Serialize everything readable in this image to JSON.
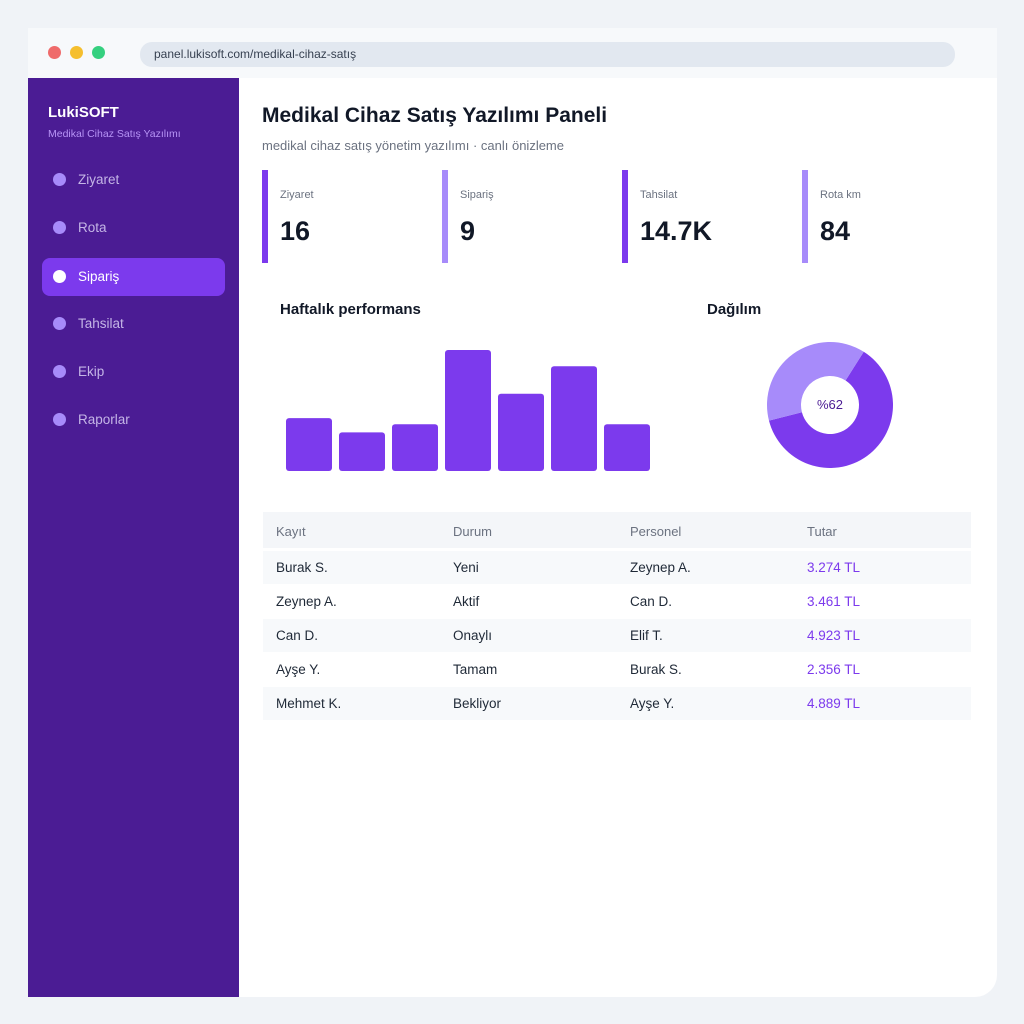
{
  "browser": {
    "url": "panel.lukisoft.com/medikal-cihaz-satış"
  },
  "sidebar": {
    "brand": "LukiSOFT",
    "subtitle": "Medikal Cihaz Satış Yazılımı",
    "items": [
      {
        "label": "Ziyaret",
        "active": false
      },
      {
        "label": "Rota",
        "active": false
      },
      {
        "label": "Sipariş",
        "active": true
      },
      {
        "label": "Tahsilat",
        "active": false
      },
      {
        "label": "Ekip",
        "active": false
      },
      {
        "label": "Raporlar",
        "active": false
      }
    ]
  },
  "main": {
    "title": "Medikal Cihaz Satış Yazılımı Paneli",
    "subtitle": "medikal cihaz satış yönetim yazılımı · canlı önizleme"
  },
  "stats": [
    {
      "label": "Ziyaret",
      "value": "16",
      "color": "#7c3aed"
    },
    {
      "label": "Sipariş",
      "value": "9",
      "color": "#a78bfa"
    },
    {
      "label": "Tahsilat",
      "value": "14.7K",
      "color": "#7c3aed"
    },
    {
      "label": "Rota km",
      "value": "84",
      "color": "#a78bfa"
    }
  ],
  "performance": {
    "title": "Haftalık performans"
  },
  "distribution": {
    "title": "Dağılım",
    "label": "%62"
  },
  "chart_data": [
    {
      "type": "bar",
      "values": [
        52,
        38,
        46,
        119,
        76,
        103,
        46
      ],
      "color": "#7c3aed"
    },
    {
      "type": "pie",
      "values": [
        62,
        38
      ],
      "colors": [
        "#7c3aed",
        "#a78bfa"
      ],
      "center_label": "%62"
    }
  ],
  "table": {
    "columns": [
      "Kayıt",
      "Durum",
      "Personel",
      "Tutar"
    ],
    "rows": [
      [
        "Burak S.",
        "Yeni",
        "Zeynep A.",
        "3.274 TL"
      ],
      [
        "Zeynep A.",
        "Aktif",
        "Can D.",
        "3.461 TL"
      ],
      [
        "Can D.",
        "Onaylı",
        "Elif T.",
        "4.923 TL"
      ],
      [
        "Ayşe Y.",
        "Tamam",
        "Burak S.",
        "2.356 TL"
      ],
      [
        "Mehmet K.",
        "Bekliyor",
        "Ayşe Y.",
        "4.889 TL"
      ]
    ]
  },
  "colors": {
    "sidebar": "#4b1c94",
    "accent": "#7c3aed",
    "accent_light": "#a78bfa"
  }
}
